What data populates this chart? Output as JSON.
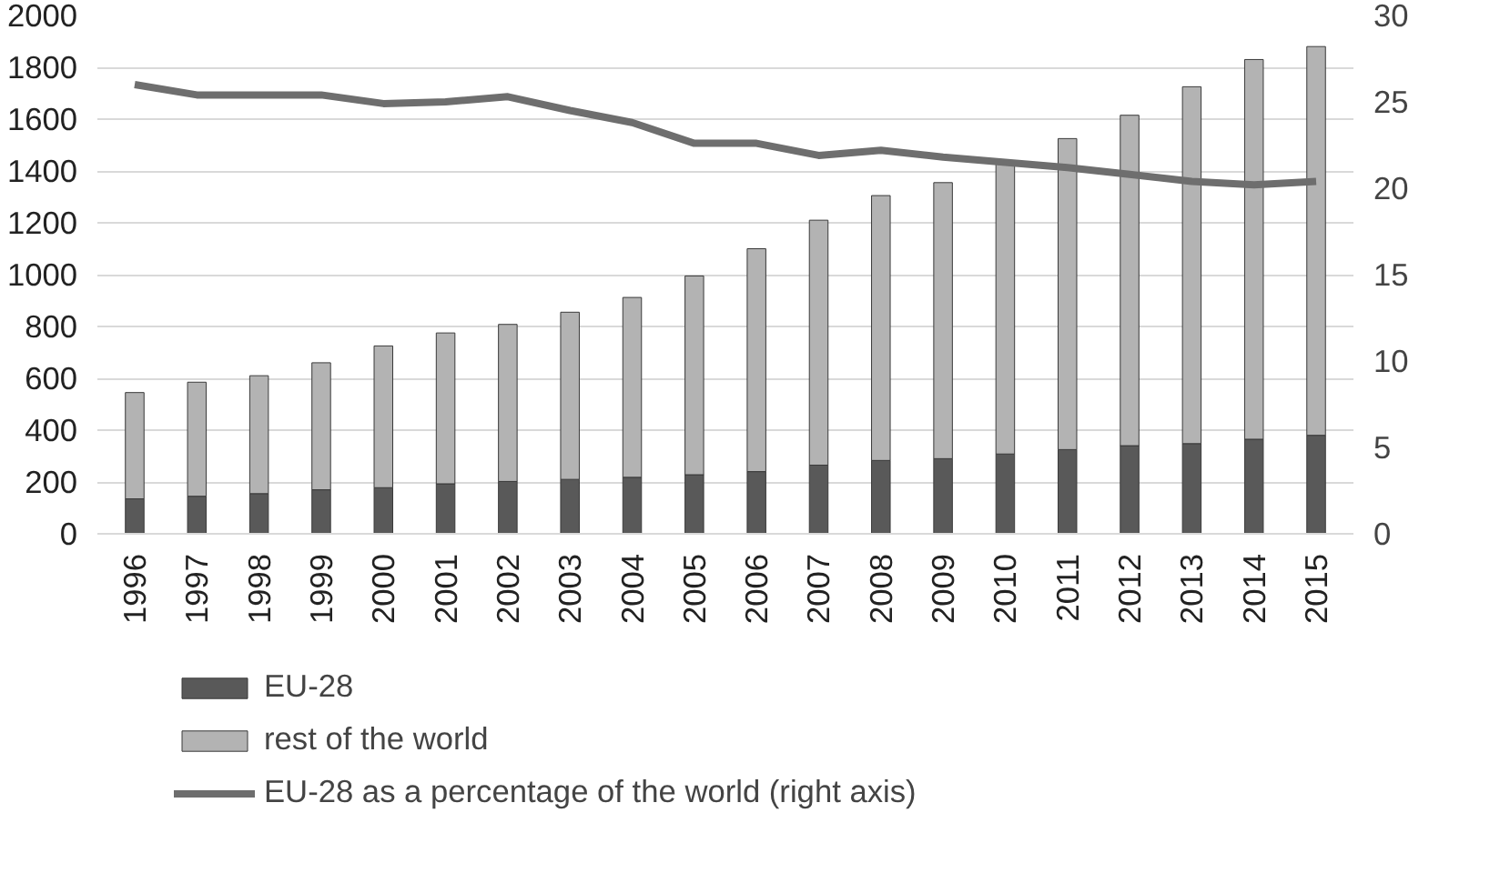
{
  "chart_data": {
    "type": "bar",
    "stacked": true,
    "categories": [
      "1996",
      "1997",
      "1998",
      "1999",
      "2000",
      "2001",
      "2002",
      "2003",
      "2004",
      "2005",
      "2006",
      "2007",
      "2008",
      "2009",
      "2010",
      "2011",
      "2012",
      "2013",
      "2014",
      "2015"
    ],
    "series": [
      {
        "name": "EU-28",
        "color": "#595959",
        "values": [
          135,
          145,
          155,
          170,
          178,
          193,
          202,
          210,
          218,
          228,
          240,
          265,
          283,
          290,
          308,
          325,
          340,
          348,
          365,
          380
        ]
      },
      {
        "name": "rest of the world",
        "color": "#b3b3b3",
        "values": [
          410,
          440,
          455,
          490,
          547,
          582,
          606,
          645,
          694,
          767,
          860,
          945,
          1022,
          1065,
          1122,
          1200,
          1275,
          1377,
          1465,
          1500
        ]
      },
      {
        "name": "EU-28 as a percentage of the world (right axis)",
        "type": "line",
        "axis": "y2",
        "color": "#6e6e6e",
        "values": [
          26.0,
          25.4,
          25.4,
          25.4,
          24.9,
          25.0,
          25.3,
          24.5,
          23.8,
          22.6,
          22.6,
          21.9,
          22.2,
          21.8,
          21.5,
          21.2,
          20.8,
          20.4,
          20.2,
          20.4
        ]
      }
    ],
    "ylim": [
      0,
      2000
    ],
    "yticks": [
      0,
      200,
      400,
      600,
      800,
      1000,
      1200,
      1400,
      1600,
      1800,
      2000
    ],
    "y2lim": [
      0,
      30
    ],
    "y2ticks": [
      0,
      5,
      10,
      15,
      20,
      25,
      30
    ],
    "grid": "y",
    "legend": "bottom"
  }
}
